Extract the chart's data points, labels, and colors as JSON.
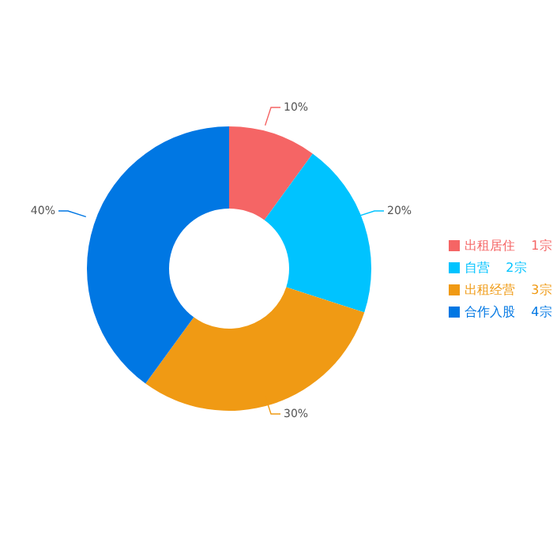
{
  "chart_data": {
    "type": "donut",
    "categories": [
      "出租居住    1宗",
      "自营    2宗",
      "出租经营    3宗",
      "合作入股    4宗"
    ],
    "values": [
      10,
      20,
      30,
      40
    ],
    "colors": [
      "#f56565",
      "#00c3ff",
      "#f09a14",
      "#0077e3"
    ],
    "value_labels": [
      "10%",
      "20%",
      "30%",
      "40%"
    ],
    "legend": "right"
  }
}
